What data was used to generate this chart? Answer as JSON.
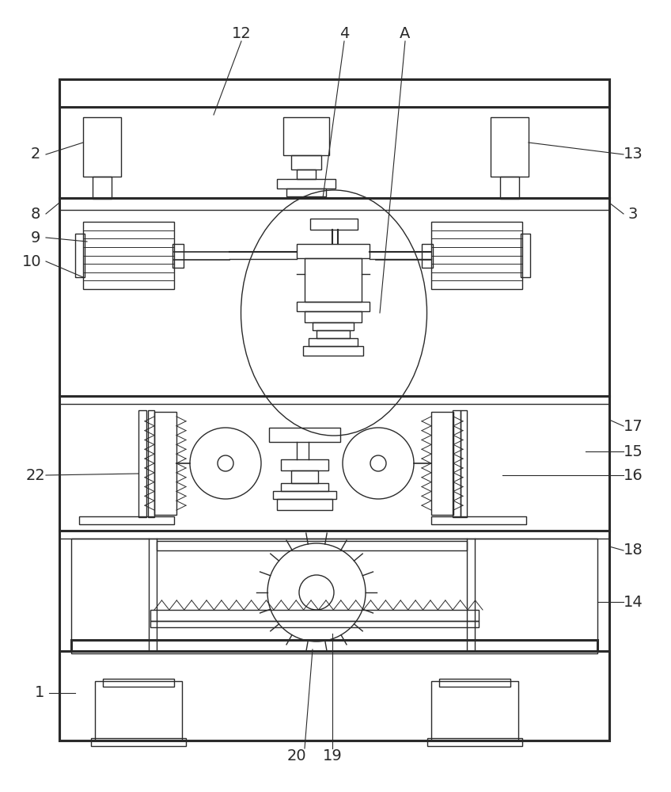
{
  "bg_color": "#ffffff",
  "line_color": "#2a2a2a",
  "fig_width": 8.48,
  "fig_height": 10.0,
  "lw": 1.0,
  "lw_thick": 2.2
}
